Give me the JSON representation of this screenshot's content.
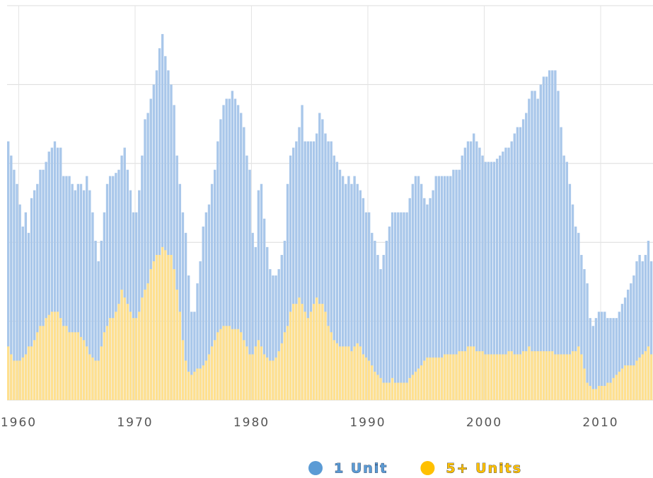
{
  "chart_data": {
    "type": "bar",
    "x": [
      1959,
      1959.25,
      1959.5,
      1959.75,
      1960,
      1960.25,
      1960.5,
      1960.75,
      1961,
      1961.25,
      1961.5,
      1961.75,
      1962,
      1962.25,
      1962.5,
      1962.75,
      1963,
      1963.25,
      1963.5,
      1963.75,
      1964,
      1964.25,
      1964.5,
      1964.75,
      1965,
      1965.25,
      1965.5,
      1965.75,
      1966,
      1966.25,
      1966.5,
      1966.75,
      1967,
      1967.25,
      1967.5,
      1967.75,
      1968,
      1968.25,
      1968.5,
      1968.75,
      1969,
      1969.25,
      1969.5,
      1969.75,
      1970,
      1970.25,
      1970.5,
      1970.75,
      1971,
      1971.25,
      1971.5,
      1971.75,
      1972,
      1972.25,
      1972.5,
      1972.75,
      1973,
      1973.25,
      1973.5,
      1973.75,
      1974,
      1974.25,
      1974.5,
      1974.75,
      1975,
      1975.25,
      1975.5,
      1975.75,
      1976,
      1976.25,
      1976.5,
      1976.75,
      1977,
      1977.25,
      1977.5,
      1977.75,
      1978,
      1978.25,
      1978.5,
      1978.75,
      1979,
      1979.25,
      1979.5,
      1979.75,
      1980,
      1980.25,
      1980.5,
      1980.75,
      1981,
      1981.25,
      1981.5,
      1981.75,
      1982,
      1982.25,
      1982.5,
      1982.75,
      1983,
      1983.25,
      1983.5,
      1983.75,
      1984,
      1984.25,
      1984.5,
      1984.75,
      1985,
      1985.25,
      1985.5,
      1985.75,
      1986,
      1986.25,
      1986.5,
      1986.75,
      1987,
      1987.25,
      1987.5,
      1987.75,
      1988,
      1988.25,
      1988.5,
      1988.75,
      1989,
      1989.25,
      1989.5,
      1989.75,
      1990,
      1990.25,
      1990.5,
      1990.75,
      1991,
      1991.25,
      1991.5,
      1991.75,
      1992,
      1992.25,
      1992.5,
      1992.75,
      1993,
      1993.25,
      1993.5,
      1993.75,
      1994,
      1994.25,
      1994.5,
      1994.75,
      1995,
      1995.25,
      1995.5,
      1995.75,
      1996,
      1996.25,
      1996.5,
      1996.75,
      1997,
      1997.25,
      1997.5,
      1997.75,
      1998,
      1998.25,
      1998.5,
      1998.75,
      1999,
      1999.25,
      1999.5,
      1999.75,
      2000,
      2000.25,
      2000.5,
      2000.75,
      2001,
      2001.25,
      2001.5,
      2001.75,
      2002,
      2002.25,
      2002.5,
      2002.75,
      2003,
      2003.25,
      2003.5,
      2003.75,
      2004,
      2004.25,
      2004.5,
      2004.75,
      2005,
      2005.25,
      2005.5,
      2005.75,
      2006,
      2006.25,
      2006.5,
      2006.75,
      2007,
      2007.25,
      2007.5,
      2007.75,
      2008,
      2008.25,
      2008.5,
      2008.75,
      2009,
      2009.25,
      2009.5,
      2009.75,
      2010,
      2010.25,
      2010.5,
      2010.75,
      2011,
      2011.25,
      2011.5,
      2011.75,
      2012,
      2012.25,
      2012.5,
      2012.75,
      2013,
      2013.25,
      2013.5,
      2013.75,
      2014,
      2014.25
    ],
    "series": [
      {
        "name": "1 Unit",
        "color": "#a9c7ea",
        "legend_color": "#5b9bd5",
        "values": [
          1640,
          1550,
          1460,
          1370,
          1240,
          1100,
          1190,
          1060,
          1280,
          1330,
          1370,
          1460,
          1460,
          1510,
          1575,
          1600,
          1640,
          1600,
          1600,
          1420,
          1420,
          1420,
          1370,
          1330,
          1370,
          1370,
          1330,
          1420,
          1330,
          1190,
          1010,
          880,
          1010,
          1190,
          1370,
          1420,
          1420,
          1440,
          1460,
          1550,
          1600,
          1460,
          1330,
          1190,
          1190,
          1330,
          1550,
          1780,
          1820,
          1910,
          2000,
          2090,
          2230,
          2320,
          2180,
          2090,
          2000,
          1870,
          1550,
          1370,
          1190,
          1060,
          790,
          560,
          560,
          740,
          880,
          1100,
          1190,
          1240,
          1370,
          1460,
          1640,
          1780,
          1870,
          1910,
          1910,
          1960,
          1910,
          1870,
          1820,
          1730,
          1550,
          1460,
          1060,
          970,
          1330,
          1370,
          1150,
          970,
          830,
          790,
          790,
          830,
          920,
          1010,
          1370,
          1550,
          1600,
          1640,
          1730,
          1870,
          1640,
          1640,
          1640,
          1640,
          1690,
          1820,
          1780,
          1690,
          1640,
          1640,
          1550,
          1510,
          1460,
          1420,
          1370,
          1420,
          1370,
          1420,
          1370,
          1330,
          1280,
          1190,
          1190,
          1060,
          1010,
          920,
          830,
          920,
          1010,
          1100,
          1190,
          1190,
          1190,
          1190,
          1190,
          1190,
          1280,
          1370,
          1420,
          1420,
          1370,
          1280,
          1240,
          1280,
          1330,
          1420,
          1420,
          1420,
          1420,
          1420,
          1420,
          1460,
          1460,
          1460,
          1550,
          1600,
          1640,
          1640,
          1690,
          1640,
          1600,
          1550,
          1510,
          1510,
          1510,
          1510,
          1530,
          1550,
          1575,
          1600,
          1600,
          1640,
          1690,
          1730,
          1730,
          1780,
          1820,
          1910,
          1960,
          1960,
          1910,
          2000,
          2050,
          2050,
          2090,
          2090,
          2090,
          1960,
          1730,
          1550,
          1510,
          1370,
          1240,
          1100,
          1060,
          920,
          830,
          740,
          520,
          470,
          520,
          560,
          560,
          560,
          520,
          520,
          520,
          520,
          560,
          610,
          650,
          700,
          740,
          790,
          880,
          920,
          880,
          920,
          1010,
          880
        ]
      },
      {
        "name": "5+ Units",
        "color": "#ffe08f",
        "legend_color": "#ffc000",
        "values": [
          340,
          290,
          250,
          250,
          250,
          270,
          290,
          340,
          340,
          380,
          430,
          470,
          470,
          520,
          540,
          560,
          560,
          560,
          520,
          470,
          470,
          430,
          430,
          430,
          430,
          400,
          380,
          340,
          290,
          270,
          250,
          250,
          340,
          430,
          470,
          520,
          520,
          560,
          610,
          700,
          650,
          610,
          560,
          520,
          520,
          560,
          650,
          700,
          740,
          830,
          880,
          920,
          920,
          970,
          950,
          920,
          920,
          830,
          700,
          560,
          380,
          250,
          180,
          160,
          180,
          200,
          200,
          220,
          250,
          290,
          340,
          380,
          430,
          450,
          470,
          470,
          470,
          450,
          450,
          450,
          430,
          380,
          340,
          290,
          290,
          340,
          380,
          340,
          290,
          270,
          250,
          250,
          270,
          310,
          360,
          430,
          470,
          560,
          610,
          610,
          650,
          610,
          560,
          520,
          560,
          610,
          650,
          610,
          610,
          560,
          470,
          430,
          380,
          360,
          340,
          340,
          340,
          340,
          310,
          340,
          360,
          340,
          290,
          270,
          250,
          220,
          180,
          160,
          140,
          110,
          110,
          110,
          140,
          110,
          110,
          110,
          110,
          110,
          140,
          160,
          180,
          200,
          220,
          250,
          270,
          270,
          270,
          270,
          270,
          270,
          290,
          290,
          290,
          290,
          290,
          310,
          310,
          310,
          340,
          340,
          340,
          310,
          310,
          310,
          290,
          290,
          290,
          290,
          290,
          290,
          290,
          290,
          310,
          310,
          290,
          290,
          290,
          310,
          310,
          340,
          310,
          310,
          310,
          310,
          310,
          310,
          310,
          310,
          290,
          290,
          290,
          290,
          290,
          290,
          310,
          310,
          340,
          290,
          200,
          110,
          90,
          70,
          70,
          90,
          90,
          90,
          110,
          110,
          140,
          160,
          180,
          200,
          220,
          220,
          220,
          220,
          250,
          270,
          290,
          310,
          340,
          290
        ]
      }
    ],
    "xlim": [
      1959,
      2014.5
    ],
    "xticks": [
      1960,
      1970,
      1980,
      1990,
      2000,
      2010
    ],
    "ylim": [
      0,
      2500
    ],
    "yticks": [
      0,
      500,
      1000,
      1500,
      2000,
      2500
    ],
    "grid": true,
    "overlap": true,
    "legend_position": "bottom"
  }
}
